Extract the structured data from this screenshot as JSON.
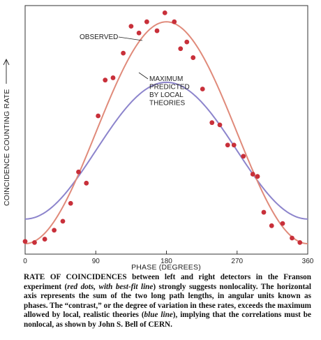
{
  "chart_data": {
    "type": "scatter",
    "xlabel": "PHASE (DEGREES)",
    "ylabel": "COINCIDENCE COUNTING RATE",
    "xlim": [
      0,
      360
    ],
    "ylim": [
      0,
      1
    ],
    "xticks": [
      0,
      90,
      180,
      270,
      360
    ],
    "grid": false,
    "series": [
      {
        "name": "OBSERVED",
        "kind": "points",
        "color": "#c8303a",
        "x": [
          0,
          12,
          25,
          37,
          48,
          58,
          68,
          78,
          93,
          102,
          112,
          125,
          135,
          145,
          155,
          168,
          178,
          190,
          198,
          206,
          214,
          226,
          238,
          248,
          258,
          266,
          278,
          290,
          296,
          304,
          314,
          328,
          340,
          350
        ],
        "y": [
          0.01,
          0.005,
          0.02,
          0.06,
          0.1,
          0.18,
          0.32,
          0.27,
          0.57,
          0.73,
          0.74,
          0.85,
          0.97,
          0.94,
          0.99,
          0.95,
          1.03,
          0.99,
          0.87,
          0.9,
          0.83,
          0.69,
          0.54,
          0.53,
          0.44,
          0.44,
          0.39,
          0.31,
          0.3,
          0.14,
          0.08,
          0.09,
          0.025,
          0.005
        ]
      },
      {
        "name": "OBSERVED",
        "kind": "fit-line",
        "color": "#e08a7a",
        "formula": "0.495 * (1 - cos(phase))",
        "peak": 0.99,
        "minimum": 0.0
      },
      {
        "name": "MAXIMUM PREDICTED BY LOCAL THEORIES",
        "kind": "theory-line",
        "color": "#8c84cc",
        "formula": "0.415 - 0.305 * cos(phase)",
        "peak": 0.72,
        "minimum": 0.11
      }
    ],
    "annotations": [
      {
        "text_lines": [
          "OBSERVED"
        ]
      },
      {
        "text_lines": [
          "MAXIMUM",
          "PREDICTED",
          "BY LOCAL",
          "THEORIES"
        ]
      }
    ]
  },
  "caption": {
    "lead": "RATE OF COINCIDENCES between left and right detectors in the Franson experiment (",
    "red_label": "red dots, with best-fit line",
    "mid1": ") strongly suggests nonlocality. The horizontal axis represents the sum of the two long path lengths, in angular units known as phases. The “contrast,” or the degree of variation in these rates, exceeds the maximum allowed by local, realistic theories (",
    "blue_label": "blue line",
    "tail": "), implying that the correlations must be nonlocal, as shown by John S. Bell of CERN."
  }
}
